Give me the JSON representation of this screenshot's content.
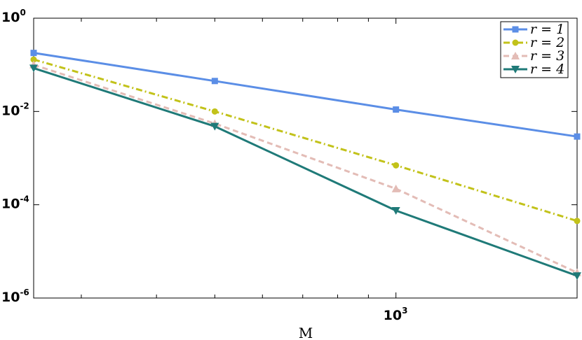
{
  "chart_data": {
    "type": "line",
    "x_scale": "log",
    "y_scale": "log",
    "xlabel": "M",
    "ylabel": "",
    "xlim": [
      250,
      2000
    ],
    "ylim": [
      1e-06,
      1
    ],
    "x_ticks": [
      {
        "base": "10",
        "exp": "3",
        "value": 1000
      }
    ],
    "y_ticks": [
      {
        "base": "10",
        "exp": "0",
        "value": 1
      },
      {
        "base": "10",
        "exp": "-2",
        "value": 0.01
      },
      {
        "base": "10",
        "exp": "-4",
        "value": 0.0001
      },
      {
        "base": "10",
        "exp": "-6",
        "value": 1e-06
      }
    ],
    "x": [
      250,
      500,
      1000,
      2000
    ],
    "series": [
      {
        "name": "r = 1",
        "color": "#5b8ee6",
        "marker": "square",
        "dash": "solid",
        "values": [
          0.18,
          0.045,
          0.011,
          0.0029
        ]
      },
      {
        "name": "r = 2",
        "color": "#c2c21a",
        "marker": "circle",
        "dash": "dashdot",
        "values": [
          0.13,
          0.01,
          0.0007,
          4.5e-05
        ]
      },
      {
        "name": "r = 3",
        "color": "#e3bcb6",
        "marker": "triangle-up",
        "dash": "dashed",
        "values": [
          0.1,
          0.0055,
          0.00022,
          3.5e-06
        ]
      },
      {
        "name": "r = 4",
        "color": "#1f7a78",
        "marker": "triangle-down",
        "dash": "solid",
        "values": [
          0.085,
          0.0048,
          7.5e-05,
          3e-06
        ]
      }
    ],
    "grid": false,
    "legend_position": "top-right"
  }
}
